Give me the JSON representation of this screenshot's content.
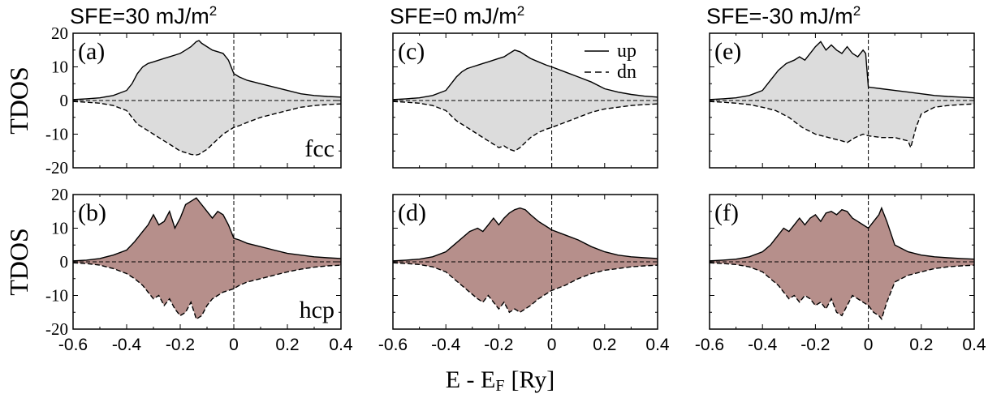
{
  "figure": {
    "xlabel_main": "E - E",
    "xlabel_sub": "F",
    "xlabel_unit": "[Ry]"
  },
  "chart_data": [
    {
      "type": "area",
      "panel": "(a)",
      "column_title": "SFE=30 mJ/m",
      "column_title_sup": "2",
      "phase_label": "fcc",
      "phase": "fcc",
      "ylabel": "TDOS",
      "xlim": [
        -0.6,
        0.4
      ],
      "ylim": [
        -20,
        20
      ],
      "x_ticks": [
        "-0.6",
        "-0.4",
        "-0.2",
        "0",
        "0.2",
        "0.4"
      ],
      "y_ticks": [
        "20",
        "10",
        "0",
        "-10",
        "-20"
      ],
      "fermi_level": 0,
      "fill_color": "#dcdcdc",
      "series": [
        {
          "name": "up",
          "style": "solid",
          "x": [
            -0.6,
            -0.55,
            -0.5,
            -0.45,
            -0.4,
            -0.38,
            -0.36,
            -0.34,
            -0.32,
            -0.3,
            -0.28,
            -0.26,
            -0.24,
            -0.22,
            -0.2,
            -0.18,
            -0.16,
            -0.14,
            -0.13,
            -0.12,
            -0.1,
            -0.08,
            -0.06,
            -0.04,
            -0.02,
            0,
            0.02,
            0.05,
            0.1,
            0.15,
            0.2,
            0.25,
            0.3,
            0.35,
            0.4
          ],
          "y": [
            0.3,
            0.5,
            0.8,
            1.5,
            3,
            5,
            8,
            10,
            11,
            11.5,
            12,
            12.5,
            13,
            13.5,
            14,
            15,
            16,
            17.5,
            17.8,
            17,
            16,
            15,
            14.5,
            14,
            12,
            8,
            7,
            6,
            5,
            4,
            3,
            2,
            1.5,
            1.2,
            1
          ]
        },
        {
          "name": "dn",
          "style": "dashed",
          "x": [
            -0.6,
            -0.55,
            -0.5,
            -0.45,
            -0.4,
            -0.38,
            -0.36,
            -0.34,
            -0.32,
            -0.3,
            -0.28,
            -0.26,
            -0.24,
            -0.22,
            -0.2,
            -0.18,
            -0.16,
            -0.14,
            -0.13,
            -0.12,
            -0.1,
            -0.08,
            -0.06,
            -0.04,
            -0.02,
            0,
            0.02,
            0.05,
            0.1,
            0.15,
            0.2,
            0.25,
            0.3,
            0.35,
            0.4
          ],
          "y": [
            -0.3,
            -0.5,
            -0.8,
            -1.5,
            -3,
            -5,
            -7,
            -8,
            -9,
            -10,
            -11,
            -12,
            -13,
            -14,
            -15,
            -15.5,
            -16,
            -16.2,
            -16,
            -15.5,
            -14.5,
            -13,
            -11.5,
            -10,
            -9,
            -8,
            -7.5,
            -6.5,
            -5,
            -4,
            -3,
            -2,
            -1.5,
            -1.2,
            -1
          ]
        }
      ]
    },
    {
      "type": "area",
      "panel": "(b)",
      "phase_label": "hcp",
      "phase": "hcp",
      "ylabel": "TDOS",
      "xlim": [
        -0.6,
        0.4
      ],
      "ylim": [
        -20,
        20
      ],
      "x_ticks": [
        "-0.6",
        "-0.4",
        "-0.2",
        "0",
        "0.2",
        "0.4"
      ],
      "y_ticks": [
        "20",
        "10",
        "0",
        "-10",
        "-20"
      ],
      "fermi_level": 0,
      "fill_color": "#b68f8b",
      "series": [
        {
          "name": "up",
          "style": "solid",
          "x": [
            -0.6,
            -0.55,
            -0.5,
            -0.45,
            -0.4,
            -0.37,
            -0.34,
            -0.32,
            -0.3,
            -0.28,
            -0.26,
            -0.24,
            -0.22,
            -0.2,
            -0.18,
            -0.16,
            -0.14,
            -0.12,
            -0.1,
            -0.08,
            -0.06,
            -0.04,
            -0.02,
            0,
            0.02,
            0.05,
            0.1,
            0.15,
            0.2,
            0.25,
            0.3,
            0.35,
            0.4
          ],
          "y": [
            0.3,
            0.5,
            1,
            2,
            3.5,
            6,
            9,
            11,
            14,
            11,
            12,
            15,
            10,
            13,
            17,
            18,
            19,
            17,
            15,
            13,
            15,
            14,
            11,
            7,
            6.5,
            5.5,
            4.5,
            3.5,
            2.5,
            2,
            1.5,
            1.2,
            1
          ]
        },
        {
          "name": "dn",
          "style": "dashed",
          "x": [
            -0.6,
            -0.55,
            -0.5,
            -0.45,
            -0.4,
            -0.37,
            -0.34,
            -0.32,
            -0.3,
            -0.28,
            -0.26,
            -0.24,
            -0.22,
            -0.2,
            -0.18,
            -0.16,
            -0.14,
            -0.12,
            -0.1,
            -0.08,
            -0.06,
            -0.04,
            -0.02,
            0,
            0.02,
            0.05,
            0.1,
            0.15,
            0.2,
            0.25,
            0.3,
            0.35,
            0.4
          ],
          "y": [
            -0.3,
            -0.5,
            -1,
            -2,
            -3.5,
            -5,
            -7,
            -9,
            -11,
            -10,
            -13,
            -11,
            -14,
            -16,
            -15,
            -12,
            -17,
            -16,
            -13,
            -11,
            -10,
            -9,
            -8.5,
            -8,
            -7,
            -6,
            -5,
            -4,
            -3,
            -2.2,
            -1.6,
            -1.2,
            -1
          ]
        }
      ]
    },
    {
      "type": "area",
      "panel": "(c)",
      "column_title": "SFE=0 mJ/m",
      "column_title_sup": "2",
      "ylabel": "",
      "legend": [
        "up",
        "dn"
      ],
      "xlim": [
        -0.6,
        0.4
      ],
      "ylim": [
        -20,
        20
      ],
      "x_ticks": [
        "-0.6",
        "-0.4",
        "-0.2",
        "0",
        "0.2",
        "0.4"
      ],
      "fermi_level": 0,
      "fill_color": "#dcdcdc",
      "series": [
        {
          "name": "up",
          "style": "solid",
          "x": [
            -0.6,
            -0.55,
            -0.5,
            -0.45,
            -0.4,
            -0.38,
            -0.36,
            -0.34,
            -0.32,
            -0.3,
            -0.28,
            -0.26,
            -0.24,
            -0.22,
            -0.2,
            -0.18,
            -0.16,
            -0.14,
            -0.12,
            -0.1,
            -0.08,
            -0.05,
            -0.02,
            0,
            0.05,
            0.1,
            0.15,
            0.2,
            0.25,
            0.3,
            0.35,
            0.4
          ],
          "y": [
            0.3,
            0.5,
            0.8,
            1.5,
            3,
            5,
            7,
            8.5,
            9.5,
            10,
            10.5,
            11,
            11.5,
            12,
            12.5,
            13,
            14,
            15,
            14.5,
            13.5,
            12.5,
            11.5,
            10.5,
            10,
            8.5,
            7,
            5.5,
            3.5,
            2.5,
            1.8,
            1.3,
            1
          ]
        },
        {
          "name": "dn",
          "style": "dashed",
          "x": [
            -0.6,
            -0.55,
            -0.5,
            -0.45,
            -0.4,
            -0.38,
            -0.36,
            -0.34,
            -0.32,
            -0.3,
            -0.28,
            -0.26,
            -0.24,
            -0.22,
            -0.2,
            -0.18,
            -0.16,
            -0.14,
            -0.12,
            -0.1,
            -0.08,
            -0.05,
            -0.02,
            0,
            0.05,
            0.1,
            0.15,
            0.2,
            0.25,
            0.3,
            0.35,
            0.4
          ],
          "y": [
            -0.3,
            -0.5,
            -0.8,
            -1.5,
            -3,
            -4.5,
            -6,
            -7,
            -8,
            -9,
            -10,
            -11,
            -12,
            -13,
            -14,
            -13.5,
            -14.5,
            -15,
            -14,
            -12.5,
            -11,
            -9.5,
            -8.5,
            -8,
            -6.5,
            -5,
            -3.5,
            -2.5,
            -2,
            -1.5,
            -1.2,
            -1
          ]
        }
      ]
    },
    {
      "type": "area",
      "panel": "(d)",
      "ylabel": "",
      "xlim": [
        -0.6,
        0.4
      ],
      "ylim": [
        -20,
        20
      ],
      "x_ticks": [
        "-0.6",
        "-0.4",
        "-0.2",
        "0",
        "0.2",
        "0.4"
      ],
      "fermi_level": 0,
      "fill_color": "#b68f8b",
      "series": [
        {
          "name": "up",
          "style": "solid",
          "x": [
            -0.6,
            -0.55,
            -0.5,
            -0.45,
            -0.4,
            -0.37,
            -0.34,
            -0.31,
            -0.28,
            -0.26,
            -0.24,
            -0.22,
            -0.2,
            -0.18,
            -0.16,
            -0.14,
            -0.12,
            -0.1,
            -0.08,
            -0.05,
            -0.02,
            0,
            0.05,
            0.1,
            0.15,
            0.2,
            0.25,
            0.3,
            0.35,
            0.4
          ],
          "y": [
            0.3,
            0.5,
            0.8,
            1.5,
            3,
            5,
            7,
            9,
            10,
            9,
            11,
            13,
            11,
            13,
            14.5,
            15.5,
            16,
            15.5,
            14,
            12,
            10.5,
            9.5,
            8,
            6.5,
            4.5,
            3,
            2,
            1.5,
            1.2,
            1
          ]
        },
        {
          "name": "dn",
          "style": "dashed",
          "x": [
            -0.6,
            -0.55,
            -0.5,
            -0.45,
            -0.4,
            -0.37,
            -0.34,
            -0.31,
            -0.28,
            -0.26,
            -0.24,
            -0.22,
            -0.2,
            -0.18,
            -0.16,
            -0.14,
            -0.12,
            -0.1,
            -0.08,
            -0.05,
            -0.02,
            0,
            0.05,
            0.1,
            0.15,
            0.2,
            0.25,
            0.3,
            0.35,
            0.4
          ],
          "y": [
            -0.3,
            -0.5,
            -0.8,
            -1.5,
            -3,
            -5,
            -7,
            -9,
            -11,
            -12,
            -10,
            -12,
            -14,
            -12,
            -15,
            -14,
            -15,
            -14,
            -13,
            -11,
            -9.5,
            -8.5,
            -7,
            -5,
            -3.5,
            -2.5,
            -2,
            -1.5,
            -1.2,
            -1
          ]
        }
      ]
    },
    {
      "type": "area",
      "panel": "(e)",
      "column_title": "SFE=-30 mJ/m",
      "column_title_sup": "2",
      "ylabel": "",
      "xlim": [
        -0.6,
        0.4
      ],
      "ylim": [
        -20,
        20
      ],
      "x_ticks": [
        "-0.6",
        "-0.4",
        "-0.2",
        "0",
        "0.2",
        "0.4"
      ],
      "fermi_level": 0,
      "fill_color": "#dcdcdc",
      "series": [
        {
          "name": "up",
          "style": "solid",
          "x": [
            -0.6,
            -0.55,
            -0.5,
            -0.45,
            -0.4,
            -0.37,
            -0.34,
            -0.31,
            -0.28,
            -0.26,
            -0.24,
            -0.22,
            -0.2,
            -0.18,
            -0.16,
            -0.14,
            -0.12,
            -0.1,
            -0.08,
            -0.06,
            -0.04,
            -0.02,
            -0.01,
            0,
            0.05,
            0.1,
            0.15,
            0.2,
            0.25,
            0.3,
            0.35,
            0.4
          ],
          "y": [
            0.3,
            0.5,
            0.8,
            1.5,
            3,
            6,
            9,
            11,
            12,
            13,
            12,
            14,
            16,
            17.5,
            15,
            16.5,
            15,
            14,
            16,
            14,
            13,
            15,
            14,
            4,
            3.5,
            3,
            2.5,
            2,
            1.5,
            1.2,
            1,
            0.8
          ]
        },
        {
          "name": "dn",
          "style": "dashed",
          "x": [
            -0.6,
            -0.55,
            -0.5,
            -0.45,
            -0.4,
            -0.35,
            -0.3,
            -0.25,
            -0.2,
            -0.15,
            -0.1,
            -0.08,
            -0.05,
            -0.02,
            0,
            0.05,
            0.1,
            0.15,
            0.16,
            0.18,
            0.2,
            0.25,
            0.3,
            0.35,
            0.4
          ],
          "y": [
            -0.3,
            -0.5,
            -0.8,
            -1.2,
            -2,
            -3,
            -5,
            -8,
            -10,
            -11,
            -12,
            -12.5,
            -11,
            -10,
            -10.5,
            -11,
            -11,
            -12,
            -14,
            -8,
            -4,
            -2,
            -1.5,
            -1.2,
            -1
          ]
        }
      ]
    },
    {
      "type": "area",
      "panel": "(f)",
      "ylabel": "",
      "xlim": [
        -0.6,
        0.4
      ],
      "ylim": [
        -20,
        20
      ],
      "x_ticks": [
        "-0.6",
        "-0.4",
        "-0.2",
        "0",
        "0.2",
        "0.4"
      ],
      "fermi_level": 0,
      "fill_color": "#b68f8b",
      "series": [
        {
          "name": "up",
          "style": "solid",
          "x": [
            -0.6,
            -0.55,
            -0.5,
            -0.45,
            -0.4,
            -0.37,
            -0.34,
            -0.32,
            -0.3,
            -0.28,
            -0.26,
            -0.24,
            -0.22,
            -0.2,
            -0.18,
            -0.16,
            -0.14,
            -0.12,
            -0.1,
            -0.08,
            -0.06,
            -0.04,
            -0.02,
            0,
            0.02,
            0.04,
            0.05,
            0.07,
            0.1,
            0.15,
            0.2,
            0.25,
            0.3,
            0.35,
            0.4
          ],
          "y": [
            0.3,
            0.5,
            0.8,
            1.5,
            3,
            5,
            8,
            10,
            9,
            11,
            13,
            11,
            13,
            14,
            12,
            14.5,
            15,
            14,
            15.5,
            15,
            13,
            12,
            11,
            10,
            12,
            14,
            16,
            12,
            5,
            3,
            2,
            1.5,
            1.2,
            1,
            0.8
          ]
        },
        {
          "name": "dn",
          "style": "dashed",
          "x": [
            -0.6,
            -0.55,
            -0.5,
            -0.45,
            -0.4,
            -0.37,
            -0.34,
            -0.32,
            -0.3,
            -0.28,
            -0.26,
            -0.24,
            -0.22,
            -0.2,
            -0.18,
            -0.16,
            -0.14,
            -0.12,
            -0.1,
            -0.08,
            -0.06,
            -0.04,
            -0.02,
            0,
            0.02,
            0.04,
            0.05,
            0.07,
            0.1,
            0.15,
            0.2,
            0.25,
            0.3,
            0.35,
            0.4
          ],
          "y": [
            -0.3,
            -0.5,
            -0.8,
            -1.5,
            -3,
            -5,
            -7,
            -9,
            -11,
            -10,
            -12,
            -10,
            -11,
            -13,
            -12,
            -14,
            -11,
            -15,
            -16,
            -13,
            -10,
            -11,
            -12,
            -13,
            -15,
            -16,
            -17,
            -12,
            -6,
            -4,
            -3,
            -2,
            -1.5,
            -1.2,
            -1
          ]
        }
      ]
    }
  ]
}
